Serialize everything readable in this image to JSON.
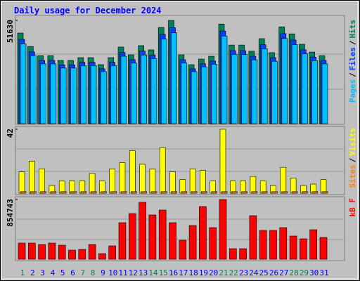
{
  "chart_data": [
    {
      "type": "bar",
      "title": "Daily usage for December 2024",
      "ylim": [
        0,
        51630
      ],
      "yticks": [
        51630
      ],
      "legend_separator": "/",
      "series": [
        {
          "name": "Hits",
          "color": "#00805c",
          "values": [
            45300,
            38600,
            34000,
            34000,
            31600,
            31600,
            33000,
            33000,
            29500,
            33000,
            38300,
            34400,
            39000,
            36900,
            48100,
            51630,
            34400,
            29500,
            32300,
            33700,
            49800,
            39300,
            39300,
            36200,
            42500,
            35500,
            48400,
            44900,
            39700,
            35800,
            34000
          ]
        },
        {
          "name": "Files",
          "color": "#0040ff",
          "values": [
            42100,
            35900,
            31600,
            31600,
            29400,
            29400,
            30700,
            30700,
            27400,
            30700,
            35600,
            32000,
            36300,
            34300,
            44700,
            48000,
            32000,
            27400,
            30000,
            31300,
            46300,
            36500,
            36500,
            33700,
            39500,
            33000,
            45000,
            41800,
            36900,
            33300,
            31600
          ]
        },
        {
          "name": "Pages",
          "color": "#00c0ff",
          "values": [
            39900,
            34000,
            29900,
            29900,
            27800,
            27800,
            29000,
            29000,
            26000,
            29000,
            33700,
            30300,
            34300,
            32500,
            42300,
            45400,
            30300,
            26000,
            28400,
            29700,
            43800,
            34600,
            34600,
            31900,
            37400,
            31200,
            42600,
            39500,
            34900,
            31500,
            29900
          ]
        }
      ]
    },
    {
      "type": "bar",
      "ylim": [
        0,
        42
      ],
      "yticks": [
        42
      ],
      "legend_separator": "/",
      "series": [
        {
          "name": "Visits",
          "color": "#ffff00",
          "values": [
            14,
            21,
            16,
            5,
            8,
            8,
            8,
            13,
            8,
            16,
            20,
            28,
            19,
            16,
            30,
            14,
            9,
            16,
            15,
            8,
            42,
            8,
            8,
            11,
            8,
            5,
            17,
            10,
            5,
            6,
            9
          ]
        },
        {
          "name": "Sites",
          "color": "#ff8000",
          "values": [
            1,
            1,
            1,
            1,
            1,
            1,
            1,
            1,
            1,
            1,
            1,
            1,
            1,
            1,
            1,
            1,
            1,
            1,
            1,
            1,
            1,
            1,
            1,
            1,
            1,
            1,
            1,
            1,
            1,
            1,
            1
          ]
        }
      ]
    },
    {
      "type": "bar",
      "ylim": [
        0,
        854743
      ],
      "yticks": [
        854743
      ],
      "categories": [
        "1",
        "2",
        "3",
        "4",
        "5",
        "6",
        "7",
        "8",
        "9",
        "10",
        "11",
        "12",
        "13",
        "14",
        "15",
        "16",
        "17",
        "18",
        "19",
        "20",
        "21",
        "22",
        "23",
        "24",
        "25",
        "26",
        "27",
        "28",
        "29",
        "30",
        "31"
      ],
      "label_colors": [
        "#00805c",
        "#0000ff",
        "#0000ff",
        "#0000ff",
        "#0000ff",
        "#0000ff",
        "#00805c",
        "#00805c",
        "#0000ff",
        "#0000ff",
        "#0000ff",
        "#0000ff",
        "#0000ff",
        "#00805c",
        "#00805c",
        "#0000ff",
        "#0000ff",
        "#0000ff",
        "#0000ff",
        "#0000ff",
        "#00805c",
        "#00805c",
        "#0000ff",
        "#0000ff",
        "#0000ff",
        "#0000ff",
        "#0000ff",
        "#00805c",
        "#00805c",
        "#0000ff",
        "#0000ff"
      ],
      "series": [
        {
          "name": "kB F",
          "color": "#ff0000",
          "values": [
            231300,
            231300,
            211200,
            231300,
            201100,
            130700,
            140800,
            211200,
            80400,
            191100,
            522900,
            653600,
            814500,
            633500,
            703900,
            522900,
            271500,
            482700,
            754200,
            452500,
            854743,
            150800,
            150800,
            623500,
            412300,
            412300,
            452500,
            331800,
            291600,
            422400,
            311700
          ]
        }
      ]
    }
  ]
}
